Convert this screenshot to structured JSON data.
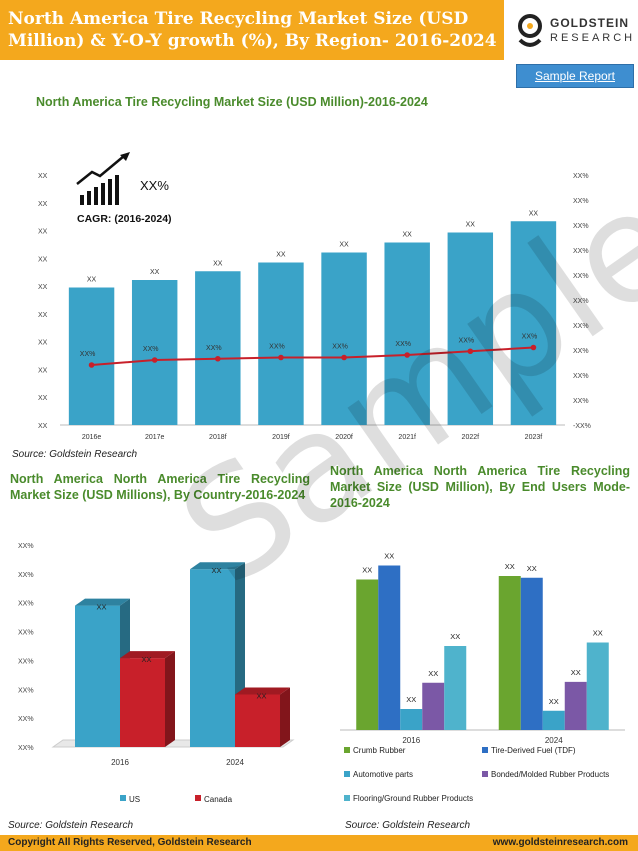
{
  "header": {
    "title": "North America Tire Recycling Market Size (USD Million) & Y-O-Y growth (%), By Region- 2016-2024",
    "logo_top": "GOLDSTEIN",
    "logo_bottom": "RESEARCH",
    "sample_button": "Sample Report"
  },
  "watermark": "Sample",
  "colors": {
    "header": "#f4a81d",
    "title_green": "#4a8b2c",
    "bar_blue": "#3aa3c8",
    "line_red": "#c8202a"
  },
  "chart_data": [
    {
      "type": "bar",
      "title": "North America Tire Recycling Market Size (USD Million)-2016-2024",
      "categories": [
        "2016e",
        "2017e",
        "2018f",
        "2019f",
        "2020f",
        "2021f",
        "2022f",
        "2023f"
      ],
      "bar_labels": [
        "XX",
        "XX",
        "XX",
        "XX",
        "XX",
        "XX",
        "XX",
        "XX"
      ],
      "values": [
        55,
        58,
        61.5,
        65,
        69,
        73,
        77,
        81.5
      ],
      "line_labels": [
        "XX%",
        "XX%",
        "XX%",
        "XX%",
        "XX%",
        "XX%",
        "XX%",
        "XX%"
      ],
      "line_values": [
        24,
        26,
        26.5,
        27,
        27,
        28,
        29.5,
        31
      ],
      "ylim": [
        0,
        100
      ],
      "y_ticks_left": [
        "XX",
        "XX",
        "XX",
        "XX",
        "XX",
        "XX",
        "XX",
        "XX",
        "XX",
        "XX"
      ],
      "y_ticks_right": [
        "-XX%",
        "XX%",
        "XX%",
        "XX%",
        "XX%",
        "XX%",
        "XX%",
        "XX%",
        "XX%",
        "XX%",
        "XX%"
      ],
      "cagr_value": "XX%",
      "cagr_label": "CAGR: (2016-2024)",
      "source": "Source: Goldstein Research"
    },
    {
      "type": "bar",
      "title": "North America North America Tire Recycling Market Size (USD Millions), By Country-2016-2024",
      "categories": [
        "2016",
        "2024"
      ],
      "series": [
        {
          "name": "US",
          "color": "#3aa3c8",
          "values": [
            70,
            88
          ],
          "labels": [
            "XX",
            "XX"
          ]
        },
        {
          "name": "Canada",
          "color": "#c8202a",
          "values": [
            44,
            26
          ],
          "labels": [
            "XX",
            "XX"
          ]
        }
      ],
      "ylim": [
        0,
        100
      ],
      "y_ticks": [
        "XX%",
        "XX%",
        "XX%",
        "XX%",
        "XX%",
        "XX%",
        "XX%",
        "XX%"
      ],
      "legend": "bottom",
      "source": "Source: Goldstein Research"
    },
    {
      "type": "bar",
      "title": "North America North America Tire Recycling Market Size (USD Million), By End Users Mode- 2016-2024",
      "categories": [
        "2016",
        "2024"
      ],
      "series": [
        {
          "name": "Crumb Rubber",
          "color": "#6aa52f",
          "values": [
            86,
            88
          ],
          "labels": [
            "XX",
            "XX"
          ]
        },
        {
          "name": "Tire-Derived Fuel (TDF)",
          "color": "#2e6fc4",
          "values": [
            94,
            87
          ],
          "labels": [
            "XX",
            "XX"
          ]
        },
        {
          "name": "Automotive parts",
          "color": "#3aa3c8",
          "values": [
            12,
            11
          ],
          "labels": [
            "XX",
            "XX"
          ]
        },
        {
          "name": "Bonded/Molded Rubber Products",
          "color": "#7b58a6",
          "values": [
            27,
            27.5
          ],
          "labels": [
            "XX",
            "XX"
          ]
        },
        {
          "name": "Flooring/Ground Rubber Products",
          "color": "#4fb3cc",
          "values": [
            48,
            50
          ],
          "labels": [
            "XX",
            "XX"
          ]
        }
      ],
      "ylim": [
        0,
        100
      ],
      "legend": "bottom",
      "source": "Source: Goldstein Research"
    }
  ],
  "footer": {
    "copyright": "Copyright     All Rights Reserved, Goldstein Research",
    "website": "www.goldsteinresearch.com"
  }
}
